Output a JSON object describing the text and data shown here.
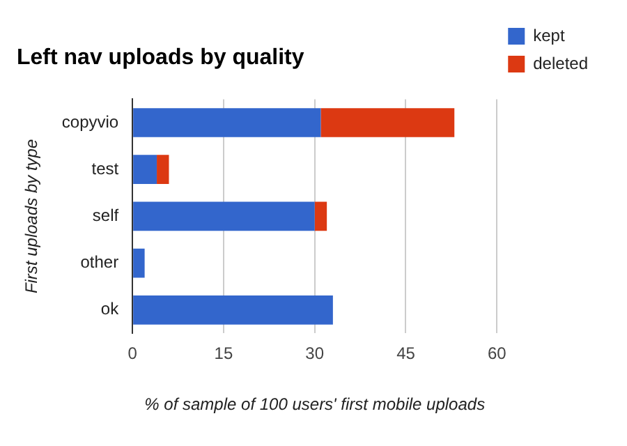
{
  "chart_data": {
    "type": "bar",
    "title": "Left nav uploads by quality",
    "orientation": "horizontal",
    "stacked": true,
    "categories": [
      "copyvio",
      "test",
      "self",
      "other",
      "ok"
    ],
    "series": [
      {
        "name": "kept",
        "color": "#3366cc",
        "values": [
          31,
          4,
          30,
          2,
          33
        ]
      },
      {
        "name": "deleted",
        "color": "#dc3912",
        "values": [
          22,
          2,
          2,
          0,
          0
        ]
      }
    ],
    "xlim": [
      0,
      60
    ],
    "xticks": [
      0,
      15,
      30,
      45,
      60
    ],
    "xlabel": "% of sample of 100 users' first mobile uploads",
    "ylabel": "First uploads by type",
    "grid": "x",
    "legend": "top right"
  }
}
